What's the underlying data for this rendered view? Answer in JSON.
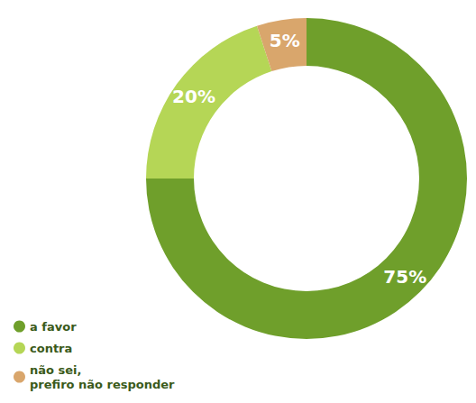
{
  "chart_data": {
    "type": "pie",
    "categories": [
      "a favor",
      "contra",
      "não sei, prefiro não responder"
    ],
    "values": [
      75,
      20,
      5
    ],
    "value_labels": [
      "75%",
      "20%",
      "5%"
    ],
    "colors": [
      "#6f9f2b",
      "#b5d656",
      "#d9a66c"
    ],
    "data_labels": true,
    "legend": "bottom-left"
  }
}
